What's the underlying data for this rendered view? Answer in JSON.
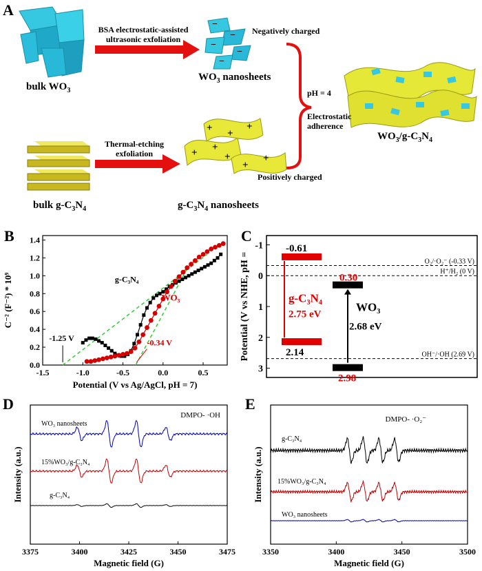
{
  "panel_labels": {
    "a": "A",
    "b": "B",
    "c": "C",
    "d": "D",
    "e": "E"
  },
  "panel_a": {
    "bulk_wo3": "bulk WO",
    "bulk_wo3_sub": "3",
    "step1_line1": "BSA electrostatic-assisted",
    "step1_line2": "ultrasonic exfoliation",
    "neg_charged": "Negatively charged",
    "wo3_ns": "WO",
    "wo3_ns_sub": "3",
    "wo3_ns_tail": " nanosheets",
    "ph": "pH = 4",
    "electrostatic": "Electrostatic",
    "adherence": "adherence",
    "composite": "WO",
    "composite_sub1": "3",
    "composite_mid": "/g-C",
    "composite_sub2": "3",
    "composite_n": "N",
    "composite_sub3": "4",
    "step2_line1": "Thermal-etching",
    "step2_line2": "exfoliation",
    "pos_charged": "Positively charged",
    "bulk_gcn": "bulk g-C",
    "bulk_gcn_sub1": "3",
    "bulk_gcn_n": "N",
    "bulk_gcn_sub2": "4",
    "gcn_ns": "g-C",
    "gcn_ns_sub1": "3",
    "gcn_ns_n": "N",
    "gcn_ns_sub2": "4",
    "gcn_ns_tail": " nanosheets",
    "minus": "−",
    "plus": "+"
  },
  "chart_data": [
    {
      "id": "B",
      "type": "scatter",
      "xlabel": "Potential (V vs Ag/AgCl, pH = 7)",
      "ylabel": "C⁻² (F⁻²) * 10⁹",
      "xlim": [
        -1.5,
        0.8
      ],
      "ylim": [
        0,
        1.45
      ],
      "xticks": [
        "-1.5",
        "-1.0",
        "-0.5",
        "0.0",
        "0.5"
      ],
      "yticks": [
        "0.0",
        "0.2",
        "0.4",
        "0.6",
        "0.8",
        "1.0",
        "1.2",
        "1.4"
      ],
      "series": [
        {
          "name": "g-C3N4",
          "color": "#000000",
          "marker": "square",
          "x": [
            -1.0,
            -0.96,
            -0.92,
            -0.88,
            -0.84,
            -0.8,
            -0.76,
            -0.72,
            -0.68,
            -0.64,
            -0.6,
            -0.56,
            -0.52,
            -0.48,
            -0.44,
            -0.4,
            -0.36,
            -0.32,
            -0.28,
            -0.24,
            -0.2,
            -0.16,
            -0.12,
            -0.08,
            -0.04,
            0.0,
            0.04,
            0.08,
            0.12,
            0.16,
            0.2,
            0.24,
            0.28,
            0.32,
            0.36,
            0.4,
            0.44,
            0.48,
            0.52,
            0.56,
            0.6,
            0.64,
            0.68,
            0.72
          ],
          "y": [
            0.25,
            0.28,
            0.3,
            0.3,
            0.29,
            0.27,
            0.25,
            0.22,
            0.19,
            0.16,
            0.13,
            0.11,
            0.1,
            0.1,
            0.12,
            0.16,
            0.24,
            0.34,
            0.45,
            0.56,
            0.64,
            0.7,
            0.75,
            0.78,
            0.8,
            0.82,
            0.85,
            0.88,
            0.9,
            0.92,
            0.94,
            0.96,
            0.98,
            1.0,
            1.02,
            1.04,
            1.06,
            1.08,
            1.1,
            1.12,
            1.14,
            1.17,
            1.2,
            1.24
          ]
        },
        {
          "name": "WO3",
          "color": "#d40000",
          "marker": "circle",
          "x": [
            -0.95,
            -0.9,
            -0.85,
            -0.8,
            -0.75,
            -0.7,
            -0.65,
            -0.6,
            -0.55,
            -0.5,
            -0.45,
            -0.4,
            -0.35,
            -0.3,
            -0.25,
            -0.2,
            -0.15,
            -0.1,
            -0.05,
            0.0,
            0.05,
            0.1,
            0.15,
            0.2,
            0.25,
            0.3,
            0.35,
            0.4,
            0.45,
            0.5,
            0.55,
            0.6,
            0.65,
            0.7,
            0.75
          ],
          "y": [
            0.04,
            0.04,
            0.05,
            0.06,
            0.07,
            0.08,
            0.09,
            0.1,
            0.11,
            0.12,
            0.13,
            0.15,
            0.19,
            0.26,
            0.34,
            0.42,
            0.5,
            0.58,
            0.66,
            0.74,
            0.82,
            0.88,
            0.94,
            0.99,
            1.04,
            1.09,
            1.13,
            1.17,
            1.21,
            1.24,
            1.27,
            1.3,
            1.32,
            1.34,
            1.36
          ]
        }
      ],
      "annotations": {
        "gcn_label": "g-C₃N₄",
        "wo3_label": "WO₃",
        "fb1": "-1.25 V",
        "fb2": "-0.34 V"
      }
    },
    {
      "id": "C",
      "type": "bar",
      "ylabel": "Potential (V vs NHE, pH = ",
      "yticks": [
        "-1",
        "0",
        "1",
        "2",
        "3"
      ],
      "ylim": [
        -1.3,
        3.3
      ],
      "levels": [
        {
          "label": "O₂/·O₂⁻ (-0.33 V)",
          "value": -0.33
        },
        {
          "label": "H⁺/H₂ (0 V)",
          "value": 0
        },
        {
          "label": "OH⁻/·OH (2.69 V)",
          "value": 2.69
        }
      ],
      "gcn": {
        "cb": "-0.61",
        "vb": "2.14",
        "name": "g-C₃N₄",
        "gap": "2.75 eV",
        "cb_value": -0.61,
        "vb_value": 2.14,
        "color": "#e00000"
      },
      "wo3": {
        "cb": "0.30",
        "vb": "2.98",
        "name": "WO₃",
        "gap": "2.68 eV",
        "cb_value": 0.3,
        "vb_value": 2.98,
        "color": "#000000"
      }
    },
    {
      "id": "D",
      "type": "line",
      "xlabel": "Magnetic field (G)",
      "ylabel": "Intensity (a.u.)",
      "xlim": [
        3375,
        3475
      ],
      "xticks": [
        "3375",
        "3400",
        "3425",
        "3450",
        "3475"
      ],
      "title": "DMPO- ·OH",
      "series": [
        {
          "name": "WO₃ nanosheets",
          "color": "#0000b4"
        },
        {
          "name": "15%WO₃/g-C₃N₄",
          "color": "#c00000"
        },
        {
          "name": "g-C₃N₄",
          "color": "#000000"
        }
      ]
    },
    {
      "id": "E",
      "type": "line",
      "xlabel": "Magnetic field (G)",
      "ylabel": "Intensity (a.u.)",
      "xlim": [
        3350,
        3500
      ],
      "xticks": [
        "3350",
        "3400",
        "3450",
        "3500"
      ],
      "title": "DMPO- ·O₂⁻",
      "series": [
        {
          "name": "g-C₃N₄",
          "color": "#000000"
        },
        {
          "name": "15%WO₃/g-C₃N₄",
          "color": "#c00000"
        },
        {
          "name": "WO₃ nanosheets",
          "color": "#0000b4"
        }
      ]
    }
  ]
}
